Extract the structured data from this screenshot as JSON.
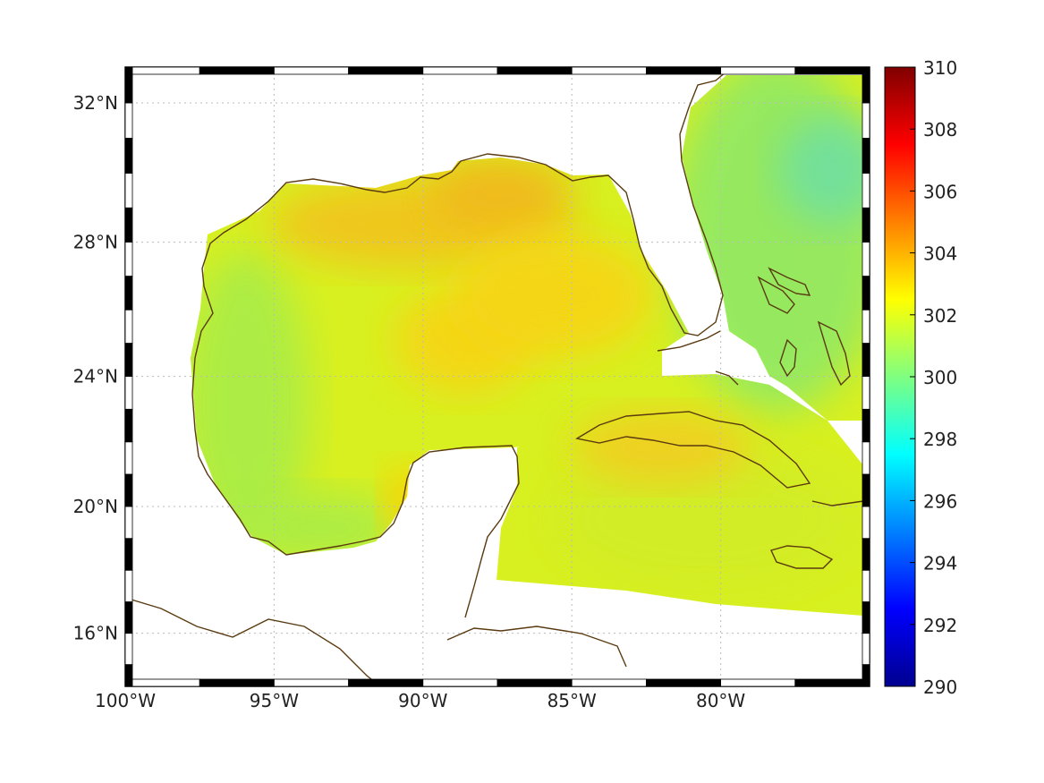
{
  "map": {
    "type": "sea-surface-temperature-map",
    "region": "Gulf of Mexico and western Caribbean",
    "lon_range": [
      -100,
      -75
    ],
    "lat_range": [
      14.3,
      33
    ],
    "projection": "mercator",
    "lon_ticks": [
      {
        "value": -100,
        "label": "100°W"
      },
      {
        "value": -95,
        "label": "95°W"
      },
      {
        "value": -90,
        "label": "90°W"
      },
      {
        "value": -85,
        "label": "85°W"
      },
      {
        "value": -80,
        "label": "80°W"
      }
    ],
    "lat_ticks": [
      {
        "value": 32,
        "label": "32°N"
      },
      {
        "value": 28,
        "label": "28°N"
      },
      {
        "value": 24,
        "label": "24°N"
      },
      {
        "value": 20,
        "label": "20°N"
      },
      {
        "value": 16,
        "label": "16°N"
      }
    ],
    "grid": true,
    "coastline_color": "#5a3a10",
    "frame": "black-and-white checkered"
  },
  "colorbar": {
    "min": 290,
    "max": 310,
    "colormap": "jet",
    "ticks": [
      {
        "value": 310,
        "label": "310"
      },
      {
        "value": 308,
        "label": "308"
      },
      {
        "value": 306,
        "label": "306"
      },
      {
        "value": 304,
        "label": "304"
      },
      {
        "value": 302,
        "label": "302"
      },
      {
        "value": 300,
        "label": "300"
      },
      {
        "value": 298,
        "label": "298"
      },
      {
        "value": 296,
        "label": "296"
      },
      {
        "value": 294,
        "label": "294"
      },
      {
        "value": 292,
        "label": "292"
      },
      {
        "value": 290,
        "label": "290"
      }
    ],
    "colors": [
      "#00008f",
      "#0000ff",
      "#0080ff",
      "#00ffff",
      "#80ff80",
      "#ffff00",
      "#ff8000",
      "#ff0000",
      "#800000"
    ]
  },
  "field": {
    "gulf_background": "#d8f020",
    "west_gulf": "#a8ec48",
    "central_gulf_warm": "#f7d419",
    "north_gulf_warm": "#f2c21a",
    "atlantic_east": "#90e866",
    "caribbean": "#d2ec28",
    "cuba_warm": "#f2cc20",
    "land": "#ffffff"
  }
}
